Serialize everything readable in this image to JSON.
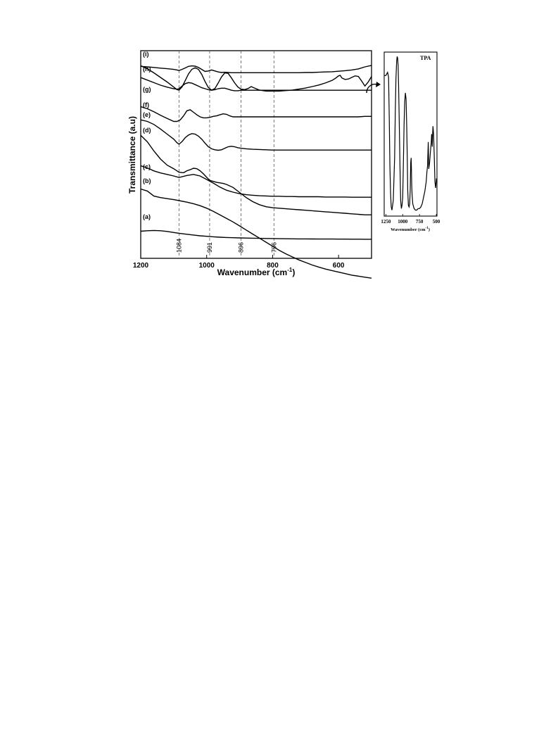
{
  "chart_data": [
    {
      "type": "line",
      "title": "",
      "xlabel": "Wavenumber (cm",
      "xlabel_sup": "-1",
      "xlabel_close": ")",
      "ylabel": "Transmittance (a.u)",
      "xlim": [
        1200,
        500
      ],
      "x_reversed": true,
      "xticks": [
        1200,
        1000,
        800,
        600
      ],
      "yticks": [],
      "grid": false,
      "marker_lines": [
        {
          "x": 1084,
          "label": "1084"
        },
        {
          "x": 991,
          "label": "991"
        },
        {
          "x": 896,
          "label": "896"
        },
        {
          "x": 796,
          "label": "796"
        }
      ],
      "series": [
        {
          "name": "(a)",
          "x": [
            1200,
            1180,
            1160,
            1140,
            1120,
            1100,
            1084,
            1060,
            1040,
            1020,
            1000,
            980,
            960,
            940,
            920,
            900,
            880,
            860,
            840,
            820,
            800,
            780,
            760,
            740,
            720,
            700,
            680,
            660,
            640,
            620,
            600,
            580,
            560,
            540,
            520,
            500
          ],
          "y": [
            -0.9,
            -0.8,
            -0.75,
            -0.8,
            -0.95,
            -1.15,
            -1.3,
            -1.5,
            -1.65,
            -1.8,
            -1.9,
            -2.0,
            -2.08,
            -2.14,
            -2.18,
            -2.22,
            -2.25,
            -2.28,
            -2.3,
            -2.33,
            -2.35,
            -2.37,
            -2.39,
            -2.4,
            -2.41,
            -2.42,
            -2.43,
            -2.44,
            -2.45,
            -2.45,
            -2.46,
            -2.46,
            -2.47,
            -2.47,
            -2.48,
            -2.48
          ]
        },
        {
          "name": "(b)",
          "x": [
            1200,
            1180,
            1160,
            1140,
            1120,
            1100,
            1084,
            1060,
            1040,
            1020,
            1000,
            980,
            960,
            940,
            920,
            900,
            880,
            860,
            840,
            820,
            800,
            780,
            760,
            740,
            720,
            700,
            680,
            660,
            640,
            620,
            600,
            580,
            560,
            540,
            520,
            500
          ],
          "y": [
            -0.9,
            -1.3,
            -2.3,
            -2.6,
            -2.8,
            -3.0,
            -3.2,
            -3.5,
            -3.8,
            -4.2,
            -4.7,
            -5.3,
            -6.0,
            -6.7,
            -7.4,
            -8.2,
            -9.0,
            -9.8,
            -10.6,
            -11.4,
            -12.2,
            -13.0,
            -13.7,
            -14.3,
            -14.9,
            -15.4,
            -15.9,
            -16.3,
            -16.7,
            -17.0,
            -17.3,
            -17.6,
            -17.9,
            -18.1,
            -18.3,
            -18.5
          ]
        },
        {
          "name": "(c)",
          "x": [
            1200,
            1180,
            1160,
            1140,
            1120,
            1100,
            1084,
            1060,
            1040,
            1020,
            1000,
            980,
            960,
            940,
            920,
            900,
            880,
            860,
            840,
            820,
            800,
            780,
            760,
            740,
            720,
            700,
            680,
            660,
            640,
            620,
            600,
            580,
            560,
            540,
            520,
            500
          ],
          "y": [
            -0.5,
            -0.9,
            -1.5,
            -1.9,
            -2.2,
            -2.5,
            -2.8,
            -2.4,
            -2.2,
            -2.5,
            -3.2,
            -3.9,
            -4.7,
            -5.3,
            -5.7,
            -6.0,
            -6.2,
            -6.3,
            -6.4,
            -6.45,
            -6.5,
            -6.5,
            -6.55,
            -6.55,
            -6.6,
            -6.6,
            -6.6,
            -6.6,
            -6.65,
            -6.65,
            -6.65,
            -6.65,
            -6.7,
            -6.7,
            -6.7,
            -6.7
          ]
        },
        {
          "name": "(d)",
          "x": [
            1200,
            1180,
            1160,
            1140,
            1120,
            1100,
            1084,
            1070,
            1060,
            1050,
            1040,
            1030,
            1020,
            1010,
            1000,
            991,
            980,
            970,
            960,
            950,
            940,
            920,
            900,
            880,
            860,
            840,
            820,
            800,
            780,
            760,
            740,
            720,
            700,
            680,
            660,
            640,
            620,
            600,
            580,
            560,
            540,
            520,
            500
          ],
          "y": [
            -0.3,
            -1.6,
            -3.4,
            -5.0,
            -6.2,
            -6.9,
            -7.6,
            -7.7,
            -7.3,
            -7.1,
            -6.8,
            -6.9,
            -7.3,
            -7.9,
            -8.6,
            -9.2,
            -9.4,
            -9.6,
            -9.7,
            -9.8,
            -10.0,
            -10.6,
            -11.6,
            -12.6,
            -13.4,
            -14.0,
            -14.4,
            -14.6,
            -14.7,
            -14.8,
            -14.9,
            -15.0,
            -15.1,
            -15.2,
            -15.3,
            -15.4,
            -15.5,
            -15.6,
            -15.7,
            -15.8,
            -15.9,
            -16.0,
            -16.0
          ]
        },
        {
          "name": "(e)",
          "x": [
            1200,
            1180,
            1160,
            1140,
            1120,
            1100,
            1090,
            1084,
            1075,
            1065,
            1055,
            1045,
            1035,
            1025,
            1015,
            1005,
            995,
            985,
            975,
            965,
            955,
            945,
            935,
            925,
            915,
            905,
            896,
            880,
            860,
            840,
            820,
            800,
            780,
            760,
            740,
            720,
            700,
            680,
            660,
            640,
            620,
            600,
            580,
            560,
            540,
            520,
            500
          ],
          "y": [
            -0.6,
            -0.9,
            -1.5,
            -2.4,
            -3.4,
            -4.4,
            -5.1,
            -5.4,
            -4.9,
            -4.1,
            -3.6,
            -3.3,
            -3.4,
            -3.8,
            -4.4,
            -5.2,
            -5.9,
            -6.3,
            -6.5,
            -6.6,
            -6.5,
            -6.2,
            -5.9,
            -5.8,
            -5.9,
            -6.1,
            -6.2,
            -6.3,
            -6.4,
            -6.45,
            -6.5,
            -6.55,
            -6.55,
            -6.55,
            -6.55,
            -6.55,
            -6.55,
            -6.55,
            -6.55,
            -6.55,
            -6.55,
            -6.55,
            -6.55,
            -6.55,
            -6.55,
            -6.55,
            -6.55
          ]
        },
        {
          "name": "(f)",
          "x": [
            1200,
            1180,
            1160,
            1140,
            1120,
            1100,
            1090,
            1080,
            1070,
            1060,
            1050,
            1040,
            1030,
            1020,
            1010,
            1000,
            990,
            980,
            970,
            960,
            950,
            940,
            930,
            920,
            910,
            900,
            896,
            880,
            860,
            840,
            820,
            800,
            780,
            760,
            740,
            720,
            700,
            680,
            660,
            640,
            620,
            600,
            580,
            560,
            540,
            520,
            500
          ],
          "y": [
            -0.5,
            -0.9,
            -1.5,
            -2.2,
            -2.8,
            -3.4,
            -3.4,
            -3.1,
            -2.3,
            -1.3,
            -1.1,
            -1.6,
            -2.1,
            -2.5,
            -2.7,
            -2.7,
            -2.6,
            -2.4,
            -2.3,
            -2.1,
            -1.9,
            -2.0,
            -2.3,
            -2.5,
            -2.5,
            -2.5,
            -2.5,
            -2.5,
            -2.5,
            -2.5,
            -2.5,
            -2.5,
            -2.5,
            -2.5,
            -2.5,
            -2.5,
            -2.5,
            -2.5,
            -2.5,
            -2.5,
            -2.5,
            -2.5,
            -2.5,
            -2.5,
            -2.5,
            -2.4,
            -2.4
          ]
        },
        {
          "name": "(g)",
          "x": [
            1200,
            1180,
            1160,
            1140,
            1120,
            1100,
            1090,
            1084,
            1075,
            1065,
            1055,
            1045,
            1035,
            1025,
            1015,
            1005,
            995,
            985,
            975,
            965,
            955,
            945,
            935,
            925,
            915,
            905,
            896,
            885,
            875,
            865,
            855,
            840,
            820,
            800,
            780,
            760,
            740,
            720,
            700,
            680,
            660,
            640,
            620,
            610,
            600,
            595,
            590,
            580,
            570,
            560,
            550,
            540,
            530,
            520,
            510,
            500
          ],
          "y": [
            -0.2,
            -0.8,
            -1.6,
            -2.5,
            -3.4,
            -4.4,
            -4.9,
            -5.0,
            -4.4,
            -3.1,
            -1.8,
            -0.9,
            -0.6,
            -0.9,
            -1.9,
            -3.3,
            -4.5,
            -5.0,
            -4.7,
            -3.6,
            -2.4,
            -1.6,
            -1.7,
            -2.6,
            -3.6,
            -4.4,
            -4.8,
            -4.9,
            -4.7,
            -4.3,
            -4.6,
            -5.0,
            -5.2,
            -5.2,
            -5.2,
            -5.1,
            -5.0,
            -4.8,
            -4.6,
            -4.3,
            -4.0,
            -3.6,
            -3.1,
            -2.7,
            -2.2,
            -2.1,
            -2.6,
            -2.9,
            -2.8,
            -2.5,
            -2.2,
            -2.3,
            -3.2,
            -4.2,
            -3.4,
            -2.3
          ]
        },
        {
          "name": "(h)",
          "x": [
            1200,
            1180,
            1160,
            1140,
            1120,
            1100,
            1090,
            1084,
            1075,
            1065,
            1055,
            1045,
            1035,
            1025,
            1015,
            1005,
            995,
            985,
            975,
            965,
            955,
            945,
            935,
            925,
            915,
            905,
            896,
            880,
            860,
            840,
            820,
            800,
            780,
            760,
            740,
            720,
            700,
            680,
            660,
            640,
            620,
            600,
            580,
            560,
            540,
            520,
            500
          ],
          "y": [
            -0.3,
            -0.8,
            -1.3,
            -1.8,
            -2.2,
            -2.5,
            -2.6,
            -2.5,
            -2.0,
            -1.5,
            -1.3,
            -1.4,
            -1.7,
            -2.0,
            -2.3,
            -2.5,
            -2.7,
            -2.8,
            -2.7,
            -2.5,
            -2.4,
            -2.4,
            -2.6,
            -2.8,
            -2.9,
            -2.9,
            -2.8,
            -2.8,
            -2.8,
            -2.8,
            -2.8,
            -2.8,
            -2.8,
            -2.8,
            -2.8,
            -2.8,
            -2.8,
            -2.8,
            -2.8,
            -2.8,
            -2.8,
            -2.8,
            -2.8,
            -2.8,
            -2.8,
            -2.8,
            -2.8
          ]
        },
        {
          "name": "(i)",
          "x": [
            1200,
            1180,
            1160,
            1140,
            1120,
            1100,
            1090,
            1084,
            1075,
            1065,
            1055,
            1045,
            1035,
            1025,
            1015,
            1005,
            995,
            985,
            975,
            965,
            955,
            945,
            935,
            925,
            915,
            905,
            896,
            880,
            860,
            840,
            820,
            800,
            780,
            760,
            740,
            720,
            700,
            680,
            660,
            640,
            620,
            600,
            580,
            560,
            540,
            520,
            500
          ],
          "y": [
            -0.6,
            -0.7,
            -0.8,
            -0.95,
            -1.05,
            -1.2,
            -1.3,
            -1.4,
            -1.2,
            -0.9,
            -0.6,
            -0.5,
            -0.55,
            -0.8,
            -1.2,
            -1.6,
            -1.5,
            -1.3,
            -1.5,
            -1.7,
            -1.8,
            -1.75,
            -1.8,
            -1.85,
            -1.85,
            -1.85,
            -1.85,
            -1.85,
            -1.85,
            -1.85,
            -1.85,
            -1.85,
            -1.85,
            -1.85,
            -1.85,
            -1.85,
            -1.8,
            -1.8,
            -1.75,
            -1.7,
            -1.65,
            -1.55,
            -1.45,
            -1.3,
            -1.1,
            -0.7,
            -0.4
          ]
        }
      ]
    },
    {
      "type": "line",
      "title": "TPA",
      "xlabel": "Wavenumber (cm",
      "xlabel_sup": "-1",
      "xlabel_close": ")",
      "ylabel": "",
      "xlim": [
        1275,
        490
      ],
      "x_reversed": true,
      "xticks": [
        1250,
        1000,
        750,
        500
      ],
      "grid": false,
      "series": [
        {
          "name": "TPA",
          "x": [
            1275,
            1250,
            1225,
            1210,
            1200,
            1190,
            1180,
            1170,
            1160,
            1140,
            1120,
            1110,
            1100,
            1090,
            1082,
            1075,
            1068,
            1060,
            1050,
            1040,
            1030,
            1020,
            1010,
            1000,
            990,
            980,
            970,
            960,
            950,
            940,
            932,
            925,
            915,
            905,
            896,
            888,
            880,
            874,
            870,
            866,
            860,
            850,
            830,
            810,
            790,
            770,
            750,
            730,
            710,
            690,
            670,
            650,
            640,
            630,
            620,
            612,
            600,
            585,
            575,
            570,
            565,
            560,
            555,
            550,
            540,
            530,
            520,
            510,
            502,
            498
          ],
          "y": [
            0.87,
            0.87,
            0.89,
            0.86,
            0.6,
            0.3,
            0.12,
            0.04,
            0.02,
            0.08,
            0.35,
            0.65,
            0.85,
            0.96,
            0.99,
            0.98,
            0.93,
            0.8,
            0.55,
            0.28,
            0.08,
            0.03,
            0.05,
            0.1,
            0.3,
            0.55,
            0.7,
            0.76,
            0.72,
            0.55,
            0.35,
            0.15,
            0.05,
            0.04,
            0.06,
            0.15,
            0.32,
            0.35,
            0.28,
            0.18,
            0.12,
            0.06,
            0.03,
            0.02,
            0.02,
            0.03,
            0.03,
            0.04,
            0.06,
            0.1,
            0.14,
            0.2,
            0.26,
            0.3,
            0.45,
            0.28,
            0.32,
            0.4,
            0.45,
            0.5,
            0.48,
            0.42,
            0.5,
            0.55,
            0.5,
            0.35,
            0.2,
            0.16,
            0.2,
            0.22
          ]
        }
      ]
    }
  ]
}
